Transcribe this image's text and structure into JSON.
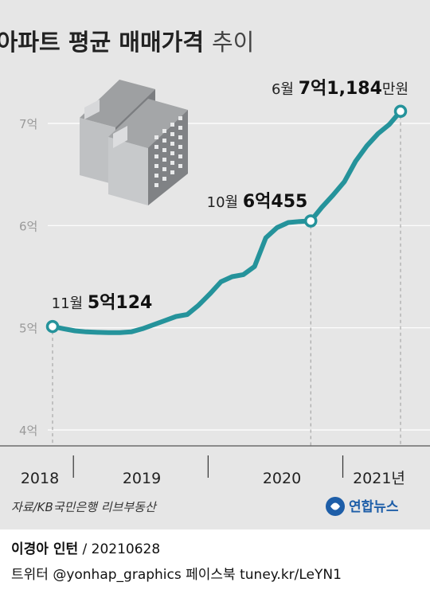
{
  "title": {
    "main": "수도권 아파트 평균 매매가격",
    "sub": "추이"
  },
  "chart_data": {
    "type": "line",
    "title": "수도권 아파트 평균 매매가격 추이",
    "y_unit": "억원",
    "ylim": [
      4,
      7.2
    ],
    "y_ticks": [
      {
        "value": 4,
        "label": "4억"
      },
      {
        "value": 5,
        "label": "5억"
      },
      {
        "value": 6,
        "label": "6억"
      },
      {
        "value": 7,
        "label": "7억"
      }
    ],
    "xlim": [
      "2018-11",
      "2021-06"
    ],
    "x_ticks": [
      {
        "value": "2018",
        "label": "2018"
      },
      {
        "value": "2019",
        "label": "2019"
      },
      {
        "value": "2020",
        "label": "2020"
      },
      {
        "value": "2021",
        "label": "2021년"
      }
    ],
    "x_dividers": [
      "2019-01",
      "2020-01",
      "2021-01"
    ],
    "grid": true,
    "series": [
      {
        "color": "#25939b",
        "points": [
          {
            "x": "2018-11",
            "y": 5.0124
          },
          {
            "x": "2018-12",
            "y": 4.99
          },
          {
            "x": "2019-01",
            "y": 4.97
          },
          {
            "x": "2019-02",
            "y": 4.96
          },
          {
            "x": "2019-03",
            "y": 4.955
          },
          {
            "x": "2019-04",
            "y": 4.953
          },
          {
            "x": "2019-05",
            "y": 4.953
          },
          {
            "x": "2019-06",
            "y": 4.96
          },
          {
            "x": "2019-07",
            "y": 4.99
          },
          {
            "x": "2019-08",
            "y": 5.03
          },
          {
            "x": "2019-09",
            "y": 5.07
          },
          {
            "x": "2019-10",
            "y": 5.11
          },
          {
            "x": "2019-11",
            "y": 5.13
          },
          {
            "x": "2019-12",
            "y": 5.22
          },
          {
            "x": "2020-01",
            "y": 5.33
          },
          {
            "x": "2020-02",
            "y": 5.45
          },
          {
            "x": "2020-03",
            "y": 5.5
          },
          {
            "x": "2020-04",
            "y": 5.52
          },
          {
            "x": "2020-05",
            "y": 5.6
          },
          {
            "x": "2020-06",
            "y": 5.88
          },
          {
            "x": "2020-07",
            "y": 5.98
          },
          {
            "x": "2020-08",
            "y": 6.03
          },
          {
            "x": "2020-09",
            "y": 6.04
          },
          {
            "x": "2020-10",
            "y": 6.0455
          },
          {
            "x": "2020-11",
            "y": 6.18
          },
          {
            "x": "2020-12",
            "y": 6.3
          },
          {
            "x": "2021-01",
            "y": 6.43
          },
          {
            "x": "2021-02",
            "y": 6.63
          },
          {
            "x": "2021-03",
            "y": 6.78
          },
          {
            "x": "2021-04",
            "y": 6.9
          },
          {
            "x": "2021-05",
            "y": 6.99
          },
          {
            "x": "2021-06",
            "y": 7.1184
          }
        ]
      }
    ],
    "annotations": [
      {
        "x": "2018-11",
        "y": 5.0124,
        "month": "11월",
        "value_eok": "5억",
        "value_rest": "124"
      },
      {
        "x": "2020-10",
        "y": 6.0455,
        "month": "10월",
        "value_eok": "6억",
        "value_rest": "455"
      },
      {
        "x": "2021-06",
        "y": 7.1184,
        "month": "6월",
        "value_eok": "7억",
        "value_rest": "1,184",
        "unit": "만원"
      }
    ]
  },
  "source": "자료/KB국민은행 리브부동산",
  "brand": "연합뉴스",
  "footer": {
    "author": "이경아 인턴",
    "date": " / 20210628",
    "social": "트위터 @yonhap_graphics  페이스북 tuney.kr/LeYN1"
  },
  "colors": {
    "background": "#e6e6e6",
    "line": "#25939b",
    "accent": "#1e5ea8"
  }
}
